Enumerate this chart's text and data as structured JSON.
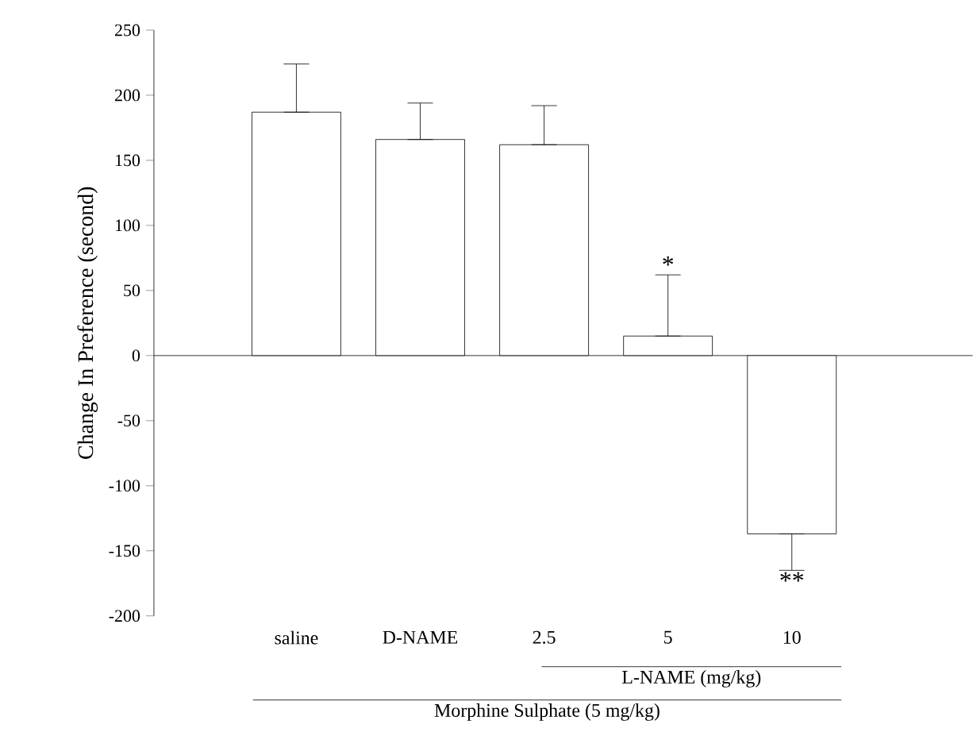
{
  "chart_data": {
    "type": "bar",
    "ylabel": "Change In Preference (second)",
    "categories": [
      "saline",
      "D-NAME",
      "2.5",
      "5",
      "10"
    ],
    "values": [
      187,
      166,
      162,
      15,
      -137
    ],
    "errors": [
      [
        187,
        224
      ],
      [
        166,
        194
      ],
      [
        162,
        192
      ],
      [
        15,
        62
      ],
      [
        -165,
        -137
      ]
    ],
    "ref_lines": [
      {
        "axis": "y",
        "value": 0
      }
    ],
    "color": "#ffffff",
    "ylim": [
      -200,
      250
    ],
    "yticks": [
      -200,
      -150,
      -100,
      -50,
      0,
      50,
      100,
      150,
      200,
      250
    ],
    "grid": false,
    "annotations": [
      {
        "text": "*",
        "x": "5",
        "y": 62
      },
      {
        "text": "**",
        "x": "10",
        "y": -165
      },
      "L-NAME (mg/kg)",
      "Morphine Sulphate (5 mg/kg)"
    ]
  }
}
